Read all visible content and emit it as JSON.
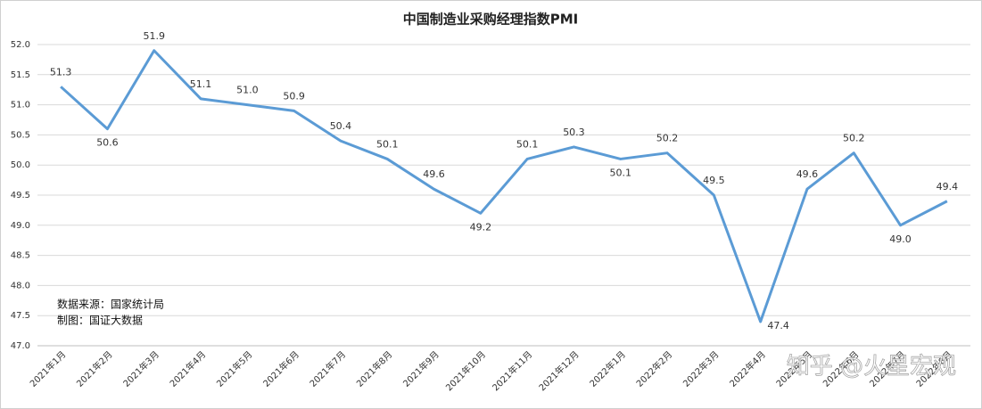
{
  "chart_data": {
    "type": "line",
    "title": "中国制造业采购经理指数PMI",
    "categories": [
      "2021年1月",
      "2021年2月",
      "2021年3月",
      "2021年4月",
      "2021年5月",
      "2021年6月",
      "2021年7月",
      "2021年8月",
      "2021年9月",
      "2021年10月",
      "2021年11月",
      "2021年12月",
      "2022年1月",
      "2022年2月",
      "2022年3月",
      "2022年4月",
      "2022年5月",
      "2022年6月",
      "2022年7月",
      "2022年8月"
    ],
    "series": [
      {
        "name": "PMI",
        "color": "#5b9bd5",
        "values": [
          51.3,
          50.6,
          51.9,
          51.1,
          51.0,
          50.9,
          50.4,
          50.1,
          49.6,
          49.2,
          50.1,
          50.3,
          50.1,
          50.2,
          49.5,
          47.4,
          49.6,
          50.2,
          49.0,
          49.4
        ],
        "value_labels": [
          "51.3",
          "50.6",
          "51.9",
          "51.1",
          "51.0",
          "50.9",
          "50.4",
          "50.1",
          "49.6",
          "49.2",
          "50.1",
          "50.3",
          "50.1",
          "50.2",
          "49.5",
          "47.4",
          "49.6",
          "50.2",
          "49.0",
          "49.4"
        ]
      }
    ],
    "ylim": [
      47,
      52
    ],
    "yticks": [
      {
        "value": 47,
        "label": "47.0"
      },
      47.5,
      {
        "value": 48,
        "label": "48.0"
      },
      48.5,
      {
        "value": 49,
        "label": "49.0"
      },
      49.5,
      {
        "value": 50,
        "label": "50.0"
      },
      50.5,
      {
        "value": 51,
        "label": "51.0"
      },
      51.5,
      {
        "value": 52,
        "label": "52.0"
      }
    ],
    "grid": true,
    "annotations": [
      "数据来源：国家统计局",
      "制图：国证大数据"
    ],
    "watermark": "知乎 @火星宏观"
  }
}
